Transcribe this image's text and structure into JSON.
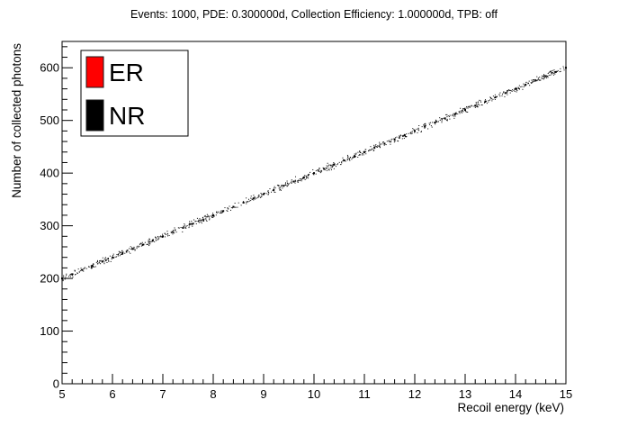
{
  "chart_data": {
    "type": "scatter",
    "title": "Events: 1000, PDE: 0.300000d, Collection Efficiency: 1.000000d, TPB: off",
    "xlabel": "Recoil energy (keV)",
    "ylabel": "Number of collected photons",
    "xlim": [
      5,
      15
    ],
    "ylim": [
      0,
      650
    ],
    "xticks": [
      5,
      6,
      7,
      8,
      9,
      10,
      11,
      12,
      13,
      14,
      15
    ],
    "yticks": [
      0,
      100,
      200,
      300,
      400,
      500,
      600
    ],
    "grid": false,
    "legend_position": "top-left",
    "legend": [
      {
        "label": "ER",
        "color": "#ff0000"
      },
      {
        "label": "NR",
        "color": "#000000"
      }
    ],
    "series": [
      {
        "name": "NR",
        "color": "#000000",
        "trend": {
          "x": [
            5,
            15
          ],
          "y": [
            200,
            600
          ]
        },
        "x": [
          5.0,
          5.2,
          5.4,
          5.6,
          5.8,
          6.0,
          6.2,
          6.4,
          6.6,
          6.8,
          7.0,
          7.2,
          7.4,
          7.6,
          7.8,
          8.0,
          8.2,
          8.4,
          8.6,
          8.8,
          9.0,
          9.2,
          9.4,
          9.6,
          9.8,
          10.0,
          10.2,
          10.4,
          10.6,
          10.8,
          11.0,
          11.2,
          11.4,
          11.6,
          11.8,
          12.0,
          12.2,
          12.4,
          12.6,
          12.8,
          13.0,
          13.2,
          13.4,
          13.6,
          13.8,
          14.0,
          14.2,
          14.4,
          14.6,
          14.8,
          15.0
        ],
        "y": [
          200,
          208,
          216,
          224,
          232,
          240,
          248,
          256,
          264,
          272,
          280,
          288,
          296,
          304,
          312,
          320,
          328,
          336,
          344,
          352,
          360,
          368,
          376,
          384,
          392,
          400,
          408,
          416,
          424,
          432,
          440,
          448,
          456,
          464,
          472,
          480,
          488,
          496,
          504,
          512,
          520,
          528,
          536,
          544,
          552,
          560,
          568,
          576,
          584,
          592,
          600
        ]
      }
    ]
  }
}
